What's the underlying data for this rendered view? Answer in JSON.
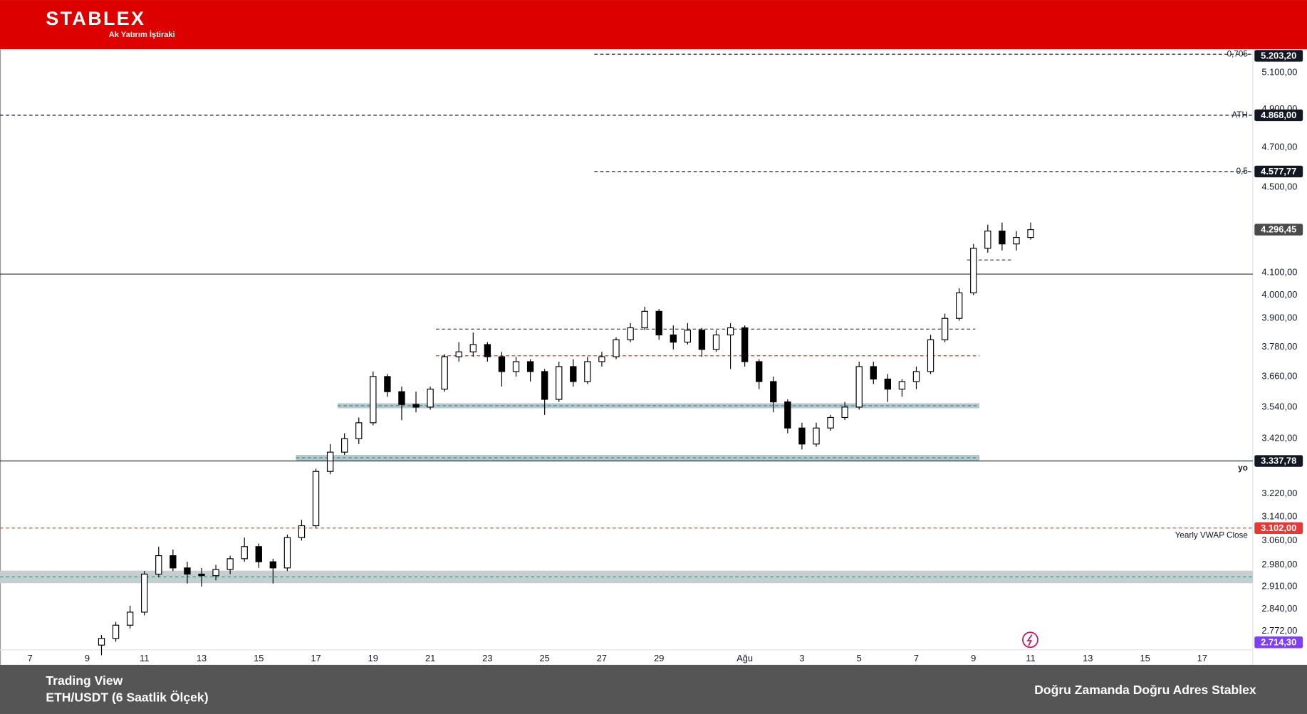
{
  "header": {
    "logo": "STABLEX",
    "tagline": "Ak Yatırım İştiraki"
  },
  "chart_data": {
    "type": "candlestick",
    "log_scale": true,
    "grid": false,
    "up_color": "#ffffff",
    "down_color": "#000000",
    "x": [
      2.5,
      3,
      3.5,
      4,
      4.5,
      5,
      5.5,
      6,
      6.5,
      7,
      7.5,
      8,
      8.5,
      9,
      9.5,
      10,
      10.5,
      11,
      11.5,
      12,
      12.5,
      13,
      13.5,
      14,
      14.5,
      15,
      15.5,
      16,
      16.5,
      17,
      17.5,
      18,
      18.5,
      19,
      19.5,
      20,
      20.5,
      21,
      21.5,
      22,
      22.5,
      23,
      23.5,
      24,
      24.5,
      25,
      25.5,
      26,
      26.5,
      27,
      27.5,
      28,
      28.5,
      29,
      29.5,
      30,
      30.5,
      31,
      31.5,
      32,
      32.5,
      33,
      33.5,
      34,
      34.5,
      35
    ],
    "open": [
      2730,
      2750,
      2790,
      2830,
      2950,
      3010,
      2970,
      2950,
      2945,
      2965,
      3000,
      3040,
      2990,
      2970,
      3070,
      3110,
      3300,
      3370,
      3420,
      3480,
      3660,
      3600,
      3550,
      3540,
      3610,
      3740,
      3760,
      3790,
      3740,
      3680,
      3720,
      3680,
      3570,
      3700,
      3640,
      3720,
      3740,
      3810,
      3860,
      3930,
      3830,
      3800,
      3850,
      3770,
      3830,
      3860,
      3720,
      3640,
      3560,
      3460,
      3400,
      3460,
      3500,
      3540,
      3700,
      3650,
      3610,
      3640,
      3680,
      3810,
      3900,
      4010,
      4210,
      4290,
      4230,
      4260
    ],
    "high": [
      2760,
      2800,
      2850,
      2960,
      3040,
      3030,
      2990,
      2970,
      2980,
      3010,
      3070,
      3050,
      3000,
      3080,
      3130,
      3310,
      3400,
      3440,
      3500,
      3680,
      3670,
      3620,
      3600,
      3620,
      3750,
      3800,
      3840,
      3800,
      3760,
      3740,
      3730,
      3690,
      3720,
      3730,
      3740,
      3760,
      3820,
      3880,
      3950,
      3940,
      3870,
      3880,
      3860,
      3850,
      3880,
      3870,
      3730,
      3660,
      3570,
      3480,
      3480,
      3510,
      3560,
      3720,
      3720,
      3670,
      3650,
      3700,
      3830,
      3920,
      4030,
      4230,
      4320,
      4330,
      4290,
      4330
    ],
    "low": [
      2700,
      2740,
      2780,
      2820,
      2940,
      2960,
      2920,
      2910,
      2930,
      2950,
      2990,
      2970,
      2920,
      2960,
      3060,
      3100,
      3290,
      3360,
      3400,
      3470,
      3580,
      3490,
      3520,
      3530,
      3600,
      3720,
      3740,
      3720,
      3620,
      3660,
      3640,
      3510,
      3560,
      3620,
      3630,
      3700,
      3730,
      3800,
      3850,
      3810,
      3770,
      3790,
      3740,
      3760,
      3690,
      3700,
      3610,
      3520,
      3440,
      3380,
      3390,
      3450,
      3490,
      3530,
      3630,
      3560,
      3580,
      3610,
      3670,
      3800,
      3890,
      4000,
      4190,
      4200,
      4200,
      4250
    ],
    "close": [
      2750,
      2790,
      2830,
      2950,
      3010,
      2970,
      2950,
      2945,
      2965,
      3000,
      3040,
      2990,
      2970,
      3070,
      3110,
      3300,
      3370,
      3420,
      3480,
      3660,
      3600,
      3550,
      3540,
      3610,
      3740,
      3760,
      3790,
      3740,
      3680,
      3720,
      3680,
      3570,
      3700,
      3640,
      3720,
      3740,
      3810,
      3860,
      3930,
      3830,
      3800,
      3850,
      3770,
      3830,
      3860,
      3720,
      3640,
      3560,
      3460,
      3400,
      3460,
      3500,
      3540,
      3700,
      3650,
      3610,
      3640,
      3680,
      3810,
      3900,
      4010,
      4210,
      4290,
      4230,
      4260,
      4296.45
    ],
    "xlim": [
      -1.05,
      42.77
    ],
    "ylim": [
      2716,
      5232
    ],
    "xticks": [
      {
        "value": 0,
        "label": "7"
      },
      {
        "value": 2,
        "label": "9"
      },
      {
        "value": 4,
        "label": "11"
      },
      {
        "value": 6,
        "label": "13"
      },
      {
        "value": 8,
        "label": "15"
      },
      {
        "value": 10,
        "label": "17"
      },
      {
        "value": 12,
        "label": "19"
      },
      {
        "value": 14,
        "label": "21"
      },
      {
        "value": 16,
        "label": "23"
      },
      {
        "value": 18,
        "label": "25"
      },
      {
        "value": 20,
        "label": "27"
      },
      {
        "value": 22,
        "label": "29"
      },
      {
        "value": 25,
        "label": "Ağu"
      },
      {
        "value": 27,
        "label": "3"
      },
      {
        "value": 29,
        "label": "5"
      },
      {
        "value": 31,
        "label": "7"
      },
      {
        "value": 33,
        "label": "9"
      },
      {
        "value": 35,
        "label": "11"
      },
      {
        "value": 37,
        "label": "13"
      },
      {
        "value": 39,
        "label": "15"
      },
      {
        "value": 41,
        "label": "17"
      }
    ],
    "yticks": [
      {
        "value": 5100,
        "label": "5.100,00"
      },
      {
        "value": 4900,
        "label": "4.900,00"
      },
      {
        "value": 4700,
        "label": "4.700,00"
      },
      {
        "value": 4500,
        "label": "4.500,00"
      },
      {
        "value": 4100,
        "label": "4.100,00"
      },
      {
        "value": 4000,
        "label": "4.000,00"
      },
      {
        "value": 3900,
        "label": "3.900,00"
      },
      {
        "value": 3780,
        "label": "3.780,00"
      },
      {
        "value": 3660,
        "label": "3.660,00"
      },
      {
        "value": 3540,
        "label": "3.540,00"
      },
      {
        "value": 3420,
        "label": "3.420,00"
      },
      {
        "value": 3220,
        "label": "3.220,00"
      },
      {
        "value": 3140,
        "label": "3.140,00"
      },
      {
        "value": 3060,
        "label": "3.060,00"
      },
      {
        "value": 2980,
        "label": "2.980,00"
      },
      {
        "value": 2910,
        "label": "2.910,00"
      },
      {
        "value": 2840,
        "label": "2.840,00"
      },
      {
        "value": 2772,
        "label": "2.772,00"
      }
    ],
    "levels": [
      {
        "value": 5203.2,
        "label": "5.203,20",
        "note": "0,705",
        "color": "#131722",
        "line": "dashed",
        "span": "right"
      },
      {
        "value": 4868,
        "label": "4.868,00",
        "note": "ATH",
        "color": "#131722",
        "line": "dashed",
        "span": "full"
      },
      {
        "value": 4577.77,
        "label": "4.577,77",
        "note": "0,5",
        "color": "#131722",
        "line": "dashed",
        "span": "right"
      },
      {
        "value": 4296.45,
        "label": "4.296,45",
        "color": "#4a4a4a",
        "line": "none"
      },
      {
        "value": 3337.78,
        "label": "3.337,78",
        "note": "yo",
        "color": "#131722",
        "line": "solid",
        "span": "full",
        "note_position": "below"
      },
      {
        "value": 3102,
        "label": "3.102,00",
        "note": "Yearly VWAP Close",
        "color": "#e53935",
        "line": "dashed",
        "span": "full",
        "note_position": "below"
      },
      {
        "value": 2714.3,
        "label": "2.714,30",
        "color": "#7e3ff2",
        "line": "none"
      }
    ]
  },
  "footer": {
    "source": "Trading View",
    "pair": "ETH/USDT (6 Saatlik Ölçek)",
    "slogan": "Doğru Zamanda Doğru Adres Stablex"
  }
}
